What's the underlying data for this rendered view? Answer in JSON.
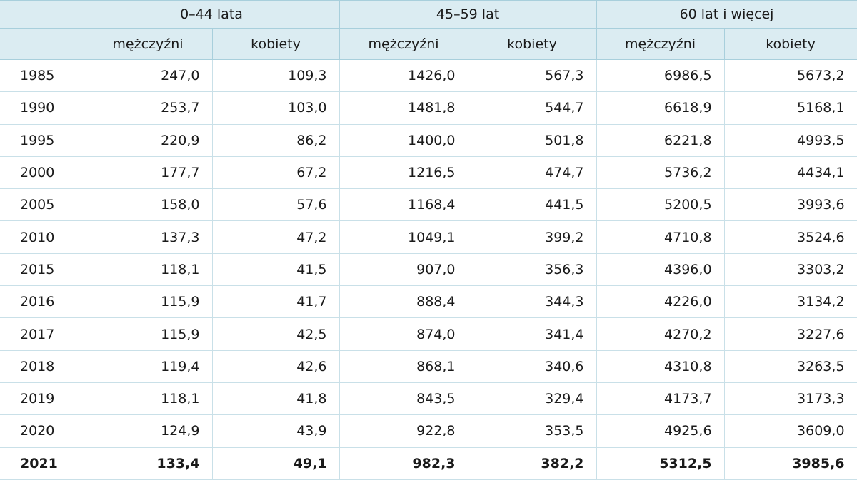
{
  "table": {
    "groups": [
      "0–44 lata",
      "45–59 lat",
      "60 lat i więcej"
    ],
    "subheaders": [
      "mężczyźni",
      "kobiety",
      "mężczyźni",
      "kobiety",
      "mężczyźni",
      "kobiety"
    ],
    "rows": [
      [
        "1985",
        "247,0",
        "109,3",
        "1426,0",
        "567,3",
        "6986,5",
        "5673,2"
      ],
      [
        "1990",
        "253,7",
        "103,0",
        "1481,8",
        "544,7",
        "6618,9",
        "5168,1"
      ],
      [
        "1995",
        "220,9",
        "86,2",
        "1400,0",
        "501,8",
        "6221,8",
        "4993,5"
      ],
      [
        "2000",
        "177,7",
        "67,2",
        "1216,5",
        "474,7",
        "5736,2",
        "4434,1"
      ],
      [
        "2005",
        "158,0",
        "57,6",
        "1168,4",
        "441,5",
        "5200,5",
        "3993,6"
      ],
      [
        "2010",
        "137,3",
        "47,2",
        "1049,1",
        "399,2",
        "4710,8",
        "3524,6"
      ],
      [
        "2015",
        "118,1",
        "41,5",
        "907,0",
        "356,3",
        "4396,0",
        "3303,2"
      ],
      [
        "2016",
        "115,9",
        "41,7",
        "888,4",
        "344,3",
        "4226,0",
        "3134,2"
      ],
      [
        "2017",
        "115,9",
        "42,5",
        "874,0",
        "341,4",
        "4270,2",
        "3227,6"
      ],
      [
        "2018",
        "119,4",
        "42,6",
        "868,1",
        "340,6",
        "4310,8",
        "3263,5"
      ],
      [
        "2019",
        "118,1",
        "41,8",
        "843,5",
        "329,4",
        "4173,7",
        "3173,3"
      ],
      [
        "2020",
        "124,9",
        "43,9",
        "922,8",
        "353,5",
        "4925,6",
        "3609,0"
      ],
      [
        "2021",
        "133,4",
        "49,1",
        "982,3",
        "382,2",
        "5312,5",
        "3985,6"
      ]
    ]
  }
}
